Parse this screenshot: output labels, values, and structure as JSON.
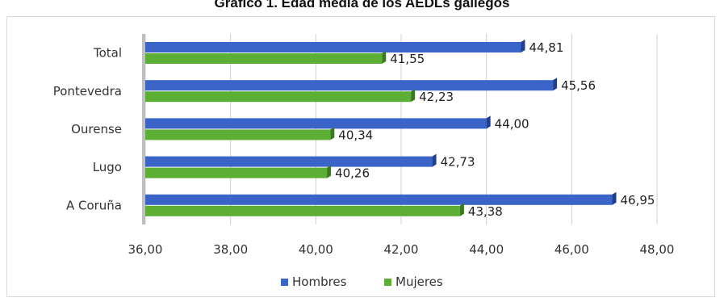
{
  "chart_data": {
    "type": "bar",
    "orientation": "horizontal",
    "title": "Gráfico 1. Edad media de los AEDLs gallegos",
    "categories": [
      "Total",
      "Pontevedra",
      "Ourense",
      "Lugo",
      "A Coruña"
    ],
    "series": [
      {
        "name": "Hombres",
        "color": "#3a64c8",
        "values": [
          44.81,
          45.56,
          44.0,
          42.73,
          46.95
        ]
      },
      {
        "name": "Mujeres",
        "color": "#5cae35",
        "values": [
          41.55,
          42.23,
          40.34,
          40.26,
          43.38
        ]
      }
    ],
    "value_labels": {
      "Hombres": [
        "44,81",
        "45,56",
        "44,00",
        "42,73",
        "46,95"
      ],
      "Mujeres": [
        "41,55",
        "42,23",
        "40,34",
        "40,26",
        "43,38"
      ]
    },
    "xlim": [
      36,
      48
    ],
    "xticks": [
      "36,00",
      "38,00",
      "40,00",
      "42,00",
      "44,00",
      "46,00",
      "48,00"
    ],
    "xtick_values": [
      36,
      38,
      40,
      42,
      44,
      46,
      48
    ],
    "grid": true,
    "legend_position": "bottom"
  }
}
